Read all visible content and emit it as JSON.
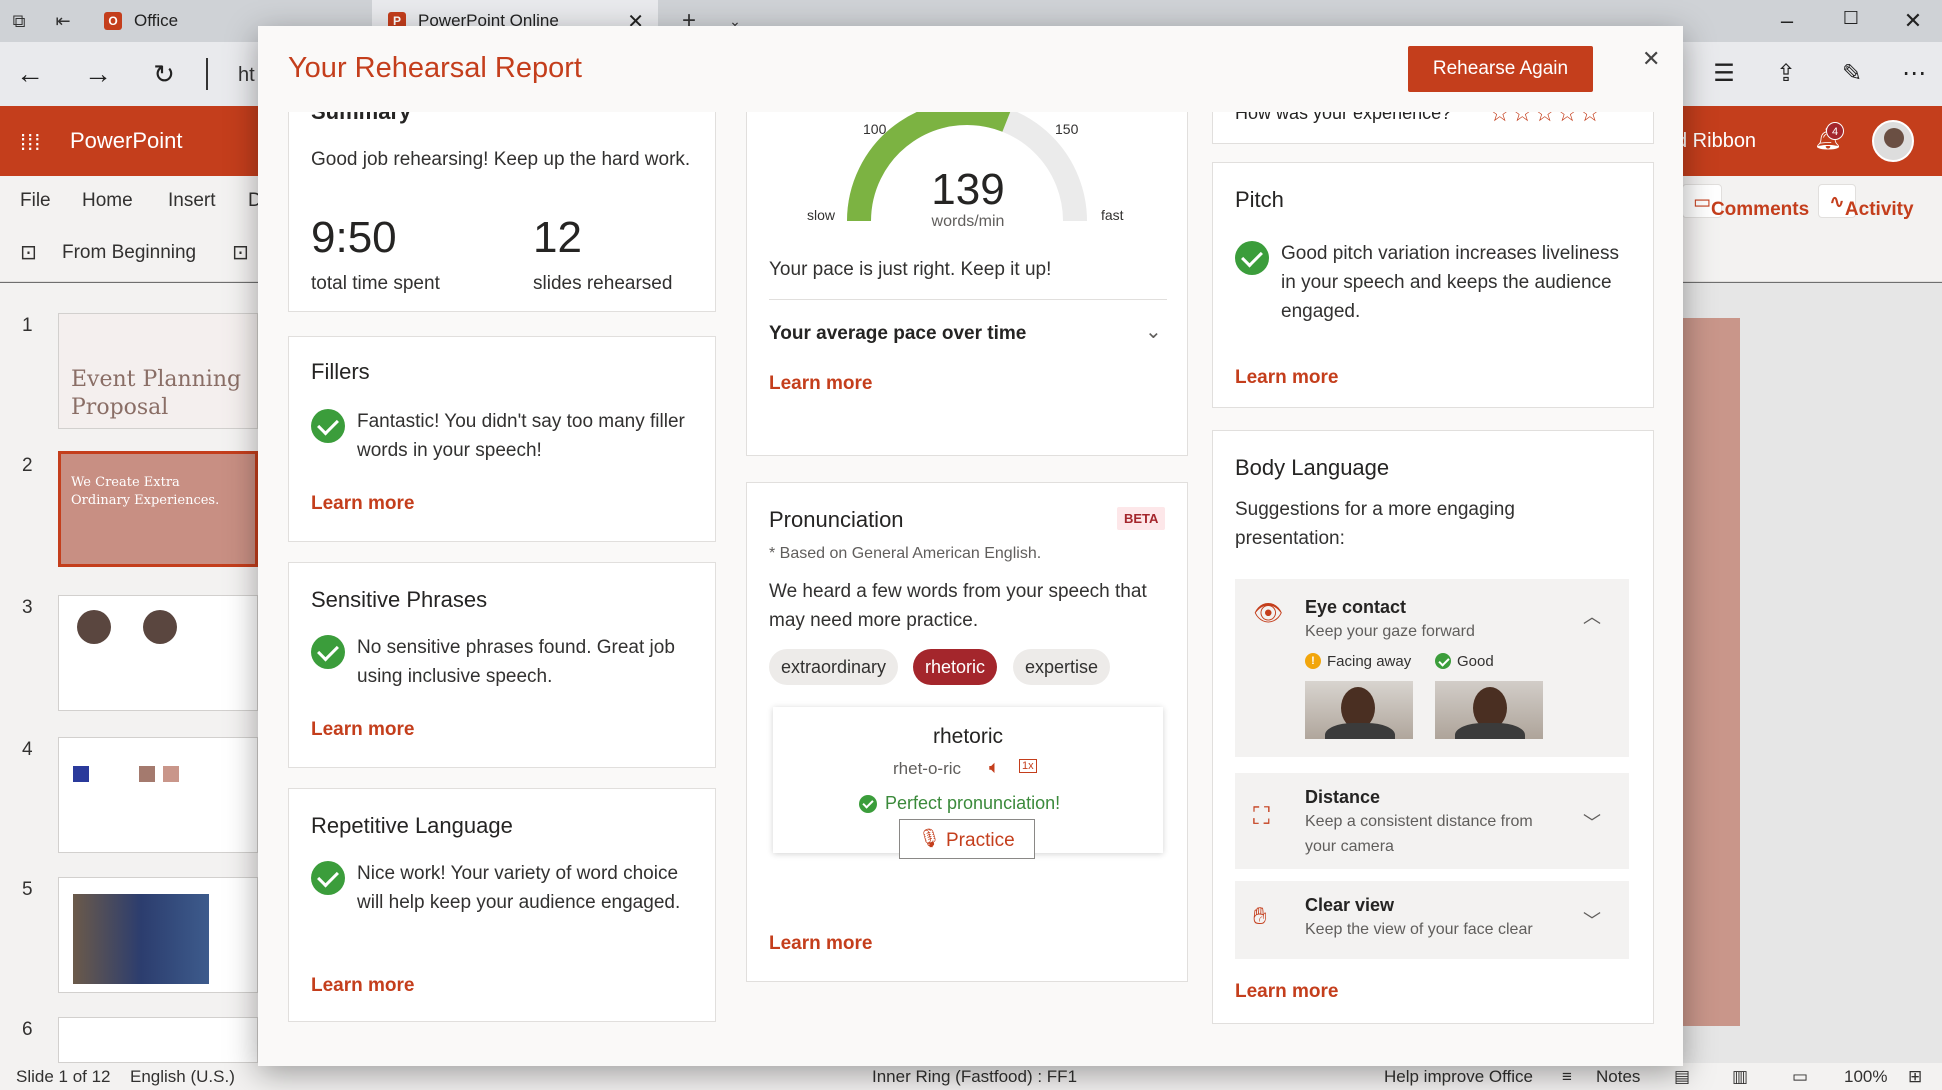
{
  "browser": {
    "tab1": "Office",
    "tab2": "PowerPoint Online",
    "url_partial": "ht"
  },
  "app": {
    "name": "PowerPoint",
    "ribbon_label": "d Ribbon",
    "notification_count": "4",
    "menu": [
      "File",
      "Home",
      "Insert",
      "D"
    ],
    "toolbar_from_beginning": "From Beginning",
    "comments": "Comments",
    "activity": "Activity"
  },
  "slides": {
    "numbers": [
      "1",
      "2",
      "3",
      "4",
      "5",
      "6"
    ],
    "slide1_title": "Event Planning Proposal",
    "slide2_title": "We Create Extra Ordinary Experiences."
  },
  "status": {
    "slide": "Slide 1 of 12",
    "language": "English (U.S.)",
    "ring": "Inner Ring (Fastfood) : FF1",
    "help": "Help improve Office",
    "notes": "Notes",
    "zoom": "100%"
  },
  "dialog": {
    "title": "Your Rehearsal Report",
    "rehearse_again": "Rehearse Again",
    "learn_more": "Learn more",
    "summary": {
      "title": "Summary",
      "text": "Good job rehearsing! Keep up the hard work.",
      "time": "9:50",
      "time_label": "total time spent",
      "slides": "12",
      "slides_label": "slides rehearsed"
    },
    "fillers": {
      "title": "Fillers",
      "text": "Fantastic! You didn't say too many filler words in your speech!"
    },
    "sensitive": {
      "title": "Sensitive Phrases",
      "text": "No sensitive phrases found. Great job using inclusive speech."
    },
    "repetitive": {
      "title": "Repetitive Language",
      "text": "Nice work! Your variety of word choice will help keep your audience engaged."
    },
    "pace": {
      "value": "139",
      "unit": "words/min",
      "gauge_fraction": 0.62,
      "tick_100": "100",
      "tick_150": "150",
      "slow": "slow",
      "fast": "fast",
      "text": "Your pace is just right. Keep it up!",
      "over_time": "Your average pace over time"
    },
    "pronunciation": {
      "title": "Pronunciation",
      "beta": "BETA",
      "note": "* Based on General American English.",
      "text": "We heard a few words from your speech that may need more practice.",
      "words": [
        "extraordinary",
        "rhetoric",
        "expertise"
      ],
      "selected_word": "rhetoric",
      "phonetic": "rhet-o-ric",
      "result": "Perfect pronunciation!",
      "practice": "Practice"
    },
    "experience": {
      "question": "How was your experience?",
      "stars": "☆☆☆☆☆"
    },
    "pitch": {
      "title": "Pitch",
      "text": "Good pitch variation increases liveliness in your speech and keeps the audience engaged."
    },
    "body_language": {
      "title": "Body Language",
      "subtitle": "Suggestions for a more engaging presentation:",
      "eye_title": "Eye contact",
      "eye_sub": "Keep your gaze forward",
      "facing_away": "Facing away",
      "good": "Good",
      "distance_title": "Distance",
      "distance_sub": "Keep a consistent distance from your camera",
      "clear_title": "Clear view",
      "clear_sub": "Keep the view of your face clear"
    }
  },
  "colors": {
    "accent": "#c43e1c",
    "gauge_fill": "#7cb342",
    "check": "#3b9d3b"
  }
}
